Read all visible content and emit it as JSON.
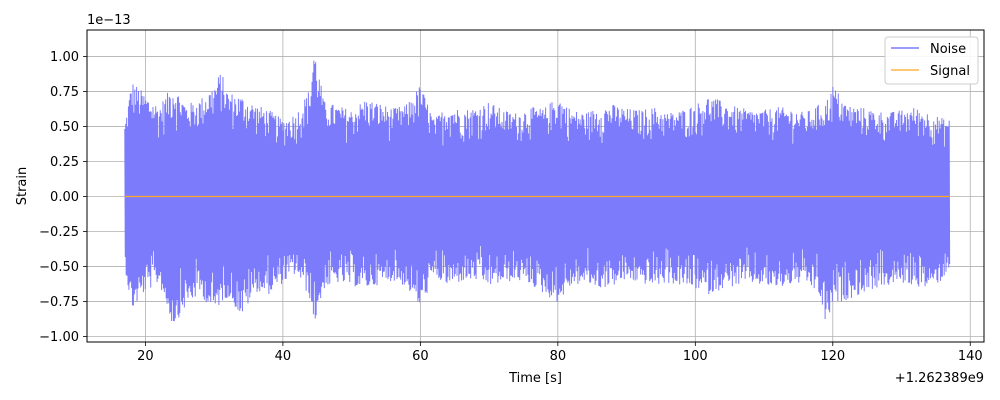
{
  "chart_data": {
    "type": "line",
    "xlabel": "Time [s]",
    "ylabel": "Strain",
    "xlim": [
      11.5,
      142
    ],
    "ylim": [
      -1.04,
      1.19
    ],
    "x_range_data": [
      17,
      137
    ],
    "x_ticks": [
      20,
      40,
      60,
      80,
      100,
      120,
      140
    ],
    "x_tick_labels": [
      "20",
      "40",
      "60",
      "80",
      "100",
      "120",
      "140"
    ],
    "y_ticks": [
      -1.0,
      -0.75,
      -0.5,
      -0.25,
      0.0,
      0.25,
      0.5,
      0.75,
      1.0
    ],
    "y_tick_labels": [
      "−1.00",
      "−0.75",
      "−0.50",
      "−0.25",
      "0.00",
      "0.25",
      "0.50",
      "0.75",
      "1.00"
    ],
    "y_scale_note": "1e−13",
    "x_offset_note": "+1.262389e9",
    "grid": true,
    "legend_position": "top-right",
    "series": [
      {
        "name": "Noise",
        "color": "#7b7bfb",
        "envelope": {
          "x": [
            17,
            18,
            20,
            22,
            24,
            26,
            28,
            30,
            31,
            32,
            34,
            36,
            38,
            40,
            42,
            44,
            44.5,
            46,
            48,
            50,
            52,
            54,
            56,
            58,
            60,
            62,
            64,
            66,
            68,
            70,
            72,
            74,
            76,
            78,
            80,
            82,
            84,
            86,
            88,
            90,
            92,
            94,
            96,
            98,
            100,
            102,
            104,
            106,
            108,
            110,
            112,
            114,
            116,
            118,
            119,
            120,
            122,
            124,
            126,
            128,
            130,
            132,
            134,
            136,
            137
          ],
          "upper": [
            0.52,
            0.83,
            0.73,
            0.65,
            0.8,
            0.66,
            0.7,
            0.8,
            0.9,
            0.75,
            0.72,
            0.66,
            0.62,
            0.55,
            0.6,
            0.78,
            1.08,
            0.68,
            0.65,
            0.62,
            0.7,
            0.67,
            0.63,
            0.66,
            0.8,
            0.55,
            0.66,
            0.62,
            0.64,
            0.68,
            0.62,
            0.6,
            0.64,
            0.63,
            0.72,
            0.62,
            0.6,
            0.64,
            0.66,
            0.63,
            0.62,
            0.64,
            0.6,
            0.62,
            0.66,
            0.72,
            0.68,
            0.64,
            0.62,
            0.62,
            0.64,
            0.63,
            0.6,
            0.66,
            0.68,
            0.8,
            0.66,
            0.64,
            0.62,
            0.6,
            0.62,
            0.64,
            0.6,
            0.56,
            0.55
          ],
          "lower": [
            -0.5,
            -0.82,
            -0.68,
            -0.62,
            -0.93,
            -0.78,
            -0.7,
            -0.84,
            -0.76,
            -0.72,
            -0.86,
            -0.68,
            -0.7,
            -0.62,
            -0.55,
            -0.74,
            -0.93,
            -0.66,
            -0.62,
            -0.64,
            -0.66,
            -0.63,
            -0.6,
            -0.65,
            -0.8,
            -0.58,
            -0.64,
            -0.61,
            -0.6,
            -0.64,
            -0.62,
            -0.6,
            -0.63,
            -0.7,
            -0.76,
            -0.64,
            -0.62,
            -0.66,
            -0.64,
            -0.6,
            -0.62,
            -0.64,
            -0.62,
            -0.64,
            -0.66,
            -0.7,
            -0.66,
            -0.64,
            -0.62,
            -0.64,
            -0.66,
            -0.63,
            -0.62,
            -0.7,
            -0.93,
            -0.78,
            -0.74,
            -0.7,
            -0.66,
            -0.64,
            -0.62,
            -0.64,
            -0.66,
            -0.6,
            -0.5
          ]
        }
      },
      {
        "name": "Signal",
        "color": "#ffa726",
        "x": [
          17,
          137
        ],
        "values": [
          0.0,
          0.0
        ]
      }
    ]
  }
}
